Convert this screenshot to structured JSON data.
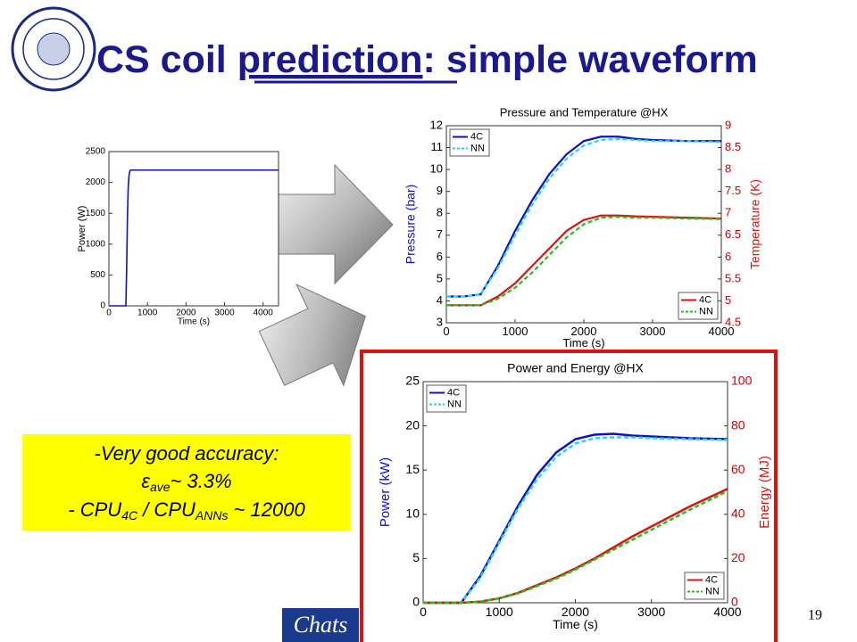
{
  "header": {
    "title_parts": [
      "CS coil ",
      "prediction",
      ": simple waveform"
    ]
  },
  "note": {
    "line1": "-Very good accuracy:",
    "line2": [
      "ε",
      "ave",
      "~  3.3%"
    ],
    "line3": [
      "-  CPU",
      "4C",
      " / CPU",
      "ANNs",
      " ~  12000"
    ]
  },
  "footer": {
    "logo": "Chats",
    "page": "19"
  },
  "chart_data": [
    {
      "type": "line",
      "xlabel": "Time (s)",
      "ylabel": "Power (W)",
      "xlim": [
        0,
        4400
      ],
      "xticks": [
        0,
        1000,
        2000,
        3000,
        4000
      ],
      "ylim": [
        0,
        2500
      ],
      "yticks": [
        0,
        500,
        1000,
        1500,
        2000,
        2500
      ],
      "x": [
        0,
        440,
        460,
        480,
        500,
        520,
        540,
        560,
        4400
      ],
      "series": [
        {
          "color": "#1010c0",
          "values": [
            0,
            0,
            600,
            1400,
            1900,
            2100,
            2180,
            2200,
            2200
          ]
        }
      ]
    },
    {
      "type": "line",
      "title": "Pressure and Temperature @HX",
      "xlabel": "Time (s)",
      "ylabel": "Pressure (bar)",
      "y2label": "Temperature (K)",
      "xlim": [
        0,
        4000
      ],
      "xticks": [
        0,
        1000,
        2000,
        3000,
        4000
      ],
      "ylim": [
        3,
        12
      ],
      "yticks": [
        3,
        4,
        5,
        6,
        7,
        8,
        9,
        10,
        11,
        12
      ],
      "y2lim": [
        4.5,
        9
      ],
      "y2ticks": [
        4.5,
        5,
        5.5,
        6,
        6.5,
        7,
        7.5,
        8,
        8.5,
        9
      ],
      "legend": {
        "y": "upper left",
        "y2": "lower right"
      },
      "x": [
        0,
        250,
        500,
        750,
        1000,
        1250,
        1500,
        1750,
        2000,
        2250,
        2500,
        2750,
        3000,
        3500,
        4000
      ],
      "series": [
        {
          "name": "4C",
          "color": "#1010c0",
          "axis": "y",
          "values": [
            4.2,
            4.2,
            4.3,
            5.6,
            7.2,
            8.6,
            9.8,
            10.7,
            11.3,
            11.5,
            11.5,
            11.4,
            11.35,
            11.3,
            11.3
          ]
        },
        {
          "name": "NN",
          "color": "#22d8f0",
          "axis": "y",
          "linestyle": "dashed",
          "values": [
            4.2,
            4.2,
            4.3,
            5.5,
            7.0,
            8.4,
            9.6,
            10.5,
            11.1,
            11.35,
            11.4,
            11.35,
            11.3,
            11.3,
            11.25
          ]
        },
        {
          "name": "4C",
          "color": "#e01010",
          "axis": "y2",
          "values": [
            4.9,
            4.9,
            4.9,
            5.1,
            5.4,
            5.8,
            6.2,
            6.6,
            6.85,
            6.95,
            6.95,
            6.93,
            6.92,
            6.9,
            6.88
          ]
        },
        {
          "name": "NN",
          "color": "#20c020",
          "axis": "y2",
          "linestyle": "dashed",
          "values": [
            4.9,
            4.9,
            4.9,
            5.05,
            5.3,
            5.65,
            6.05,
            6.45,
            6.75,
            6.9,
            6.92,
            6.9,
            6.9,
            6.88,
            6.87
          ]
        }
      ]
    },
    {
      "type": "line",
      "title": "Power and Energy @HX",
      "xlabel": "Time (s)",
      "ylabel": "Power (kW)",
      "y2label": "Energy (MJ)",
      "xlim": [
        0,
        4000
      ],
      "xticks": [
        0,
        1000,
        2000,
        3000,
        4000
      ],
      "ylim": [
        0,
        25
      ],
      "yticks": [
        0,
        5,
        10,
        15,
        20,
        25
      ],
      "y2lim": [
        0,
        100
      ],
      "y2ticks": [
        0,
        20,
        40,
        60,
        80,
        100
      ],
      "legend": {
        "y": "upper left",
        "y2": "lower right"
      },
      "x": [
        0,
        250,
        500,
        750,
        1000,
        1250,
        1500,
        1750,
        2000,
        2250,
        2500,
        2750,
        3000,
        3500,
        4000
      ],
      "series": [
        {
          "name": "4C",
          "color": "#1010c0",
          "axis": "y",
          "values": [
            0,
            0,
            0,
            3,
            7,
            11,
            14.5,
            17,
            18.5,
            19,
            19.1,
            18.9,
            18.8,
            18.6,
            18.5
          ]
        },
        {
          "name": "NN",
          "color": "#22d8f0",
          "axis": "y",
          "linestyle": "dashed",
          "values": [
            0,
            0,
            0,
            2.8,
            6.8,
            10.7,
            14,
            16.5,
            18,
            18.6,
            18.7,
            18.7,
            18.6,
            18.5,
            18.4
          ]
        },
        {
          "name": "4C",
          "color": "#e01010",
          "axis": "y2",
          "values": [
            0,
            0,
            0,
            0.5,
            2,
            4.5,
            8,
            11.5,
            15.5,
            20,
            25,
            30,
            34.5,
            43.5,
            51.5
          ]
        },
        {
          "name": "NN",
          "color": "#20c020",
          "axis": "y2",
          "linestyle": "dashed",
          "values": [
            0,
            0,
            0,
            0.5,
            2,
            4.3,
            7.6,
            11,
            15,
            19.5,
            24,
            28.5,
            33,
            42,
            50.5
          ]
        }
      ]
    }
  ]
}
